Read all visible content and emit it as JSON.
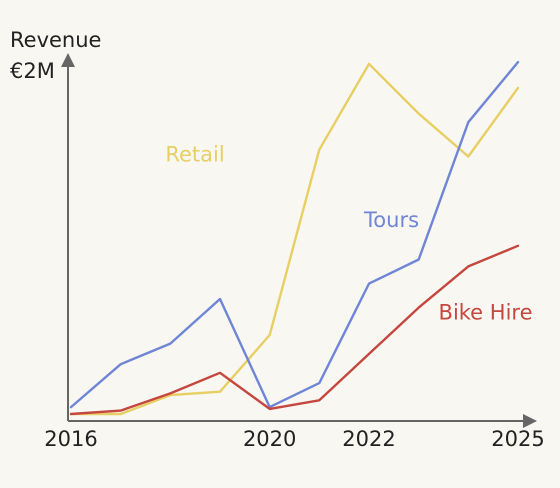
{
  "chart_data": {
    "type": "line",
    "ylabel": "Revenue",
    "xlabel": "",
    "x": [
      2016,
      2017,
      2018,
      2019,
      2020,
      2021,
      2022,
      2023,
      2024,
      2025
    ],
    "xticks": [
      "2016",
      "2020",
      "2022",
      "2025"
    ],
    "yticks": [
      "€2M"
    ],
    "ytick_values": [
      2.0
    ],
    "ylim": [
      0,
      2.08
    ],
    "grid": false,
    "legend": "inline labels",
    "series": [
      {
        "name": "Retail",
        "color": "#e8cf63",
        "values": [
          0.0,
          0.0,
          0.11,
          0.13,
          0.46,
          1.54,
          2.04,
          1.75,
          1.5,
          1.9
        ]
      },
      {
        "name": "Tours",
        "color": "#6f85d6",
        "values": [
          0.04,
          0.29,
          0.41,
          0.67,
          0.04,
          0.18,
          0.76,
          0.9,
          1.7,
          2.05
        ]
      },
      {
        "name": "Bike Hire",
        "color": "#c5473f",
        "values": [
          0.0,
          0.02,
          0.12,
          0.24,
          0.03,
          0.08,
          0.35,
          0.62,
          0.86,
          0.98
        ]
      }
    ]
  }
}
